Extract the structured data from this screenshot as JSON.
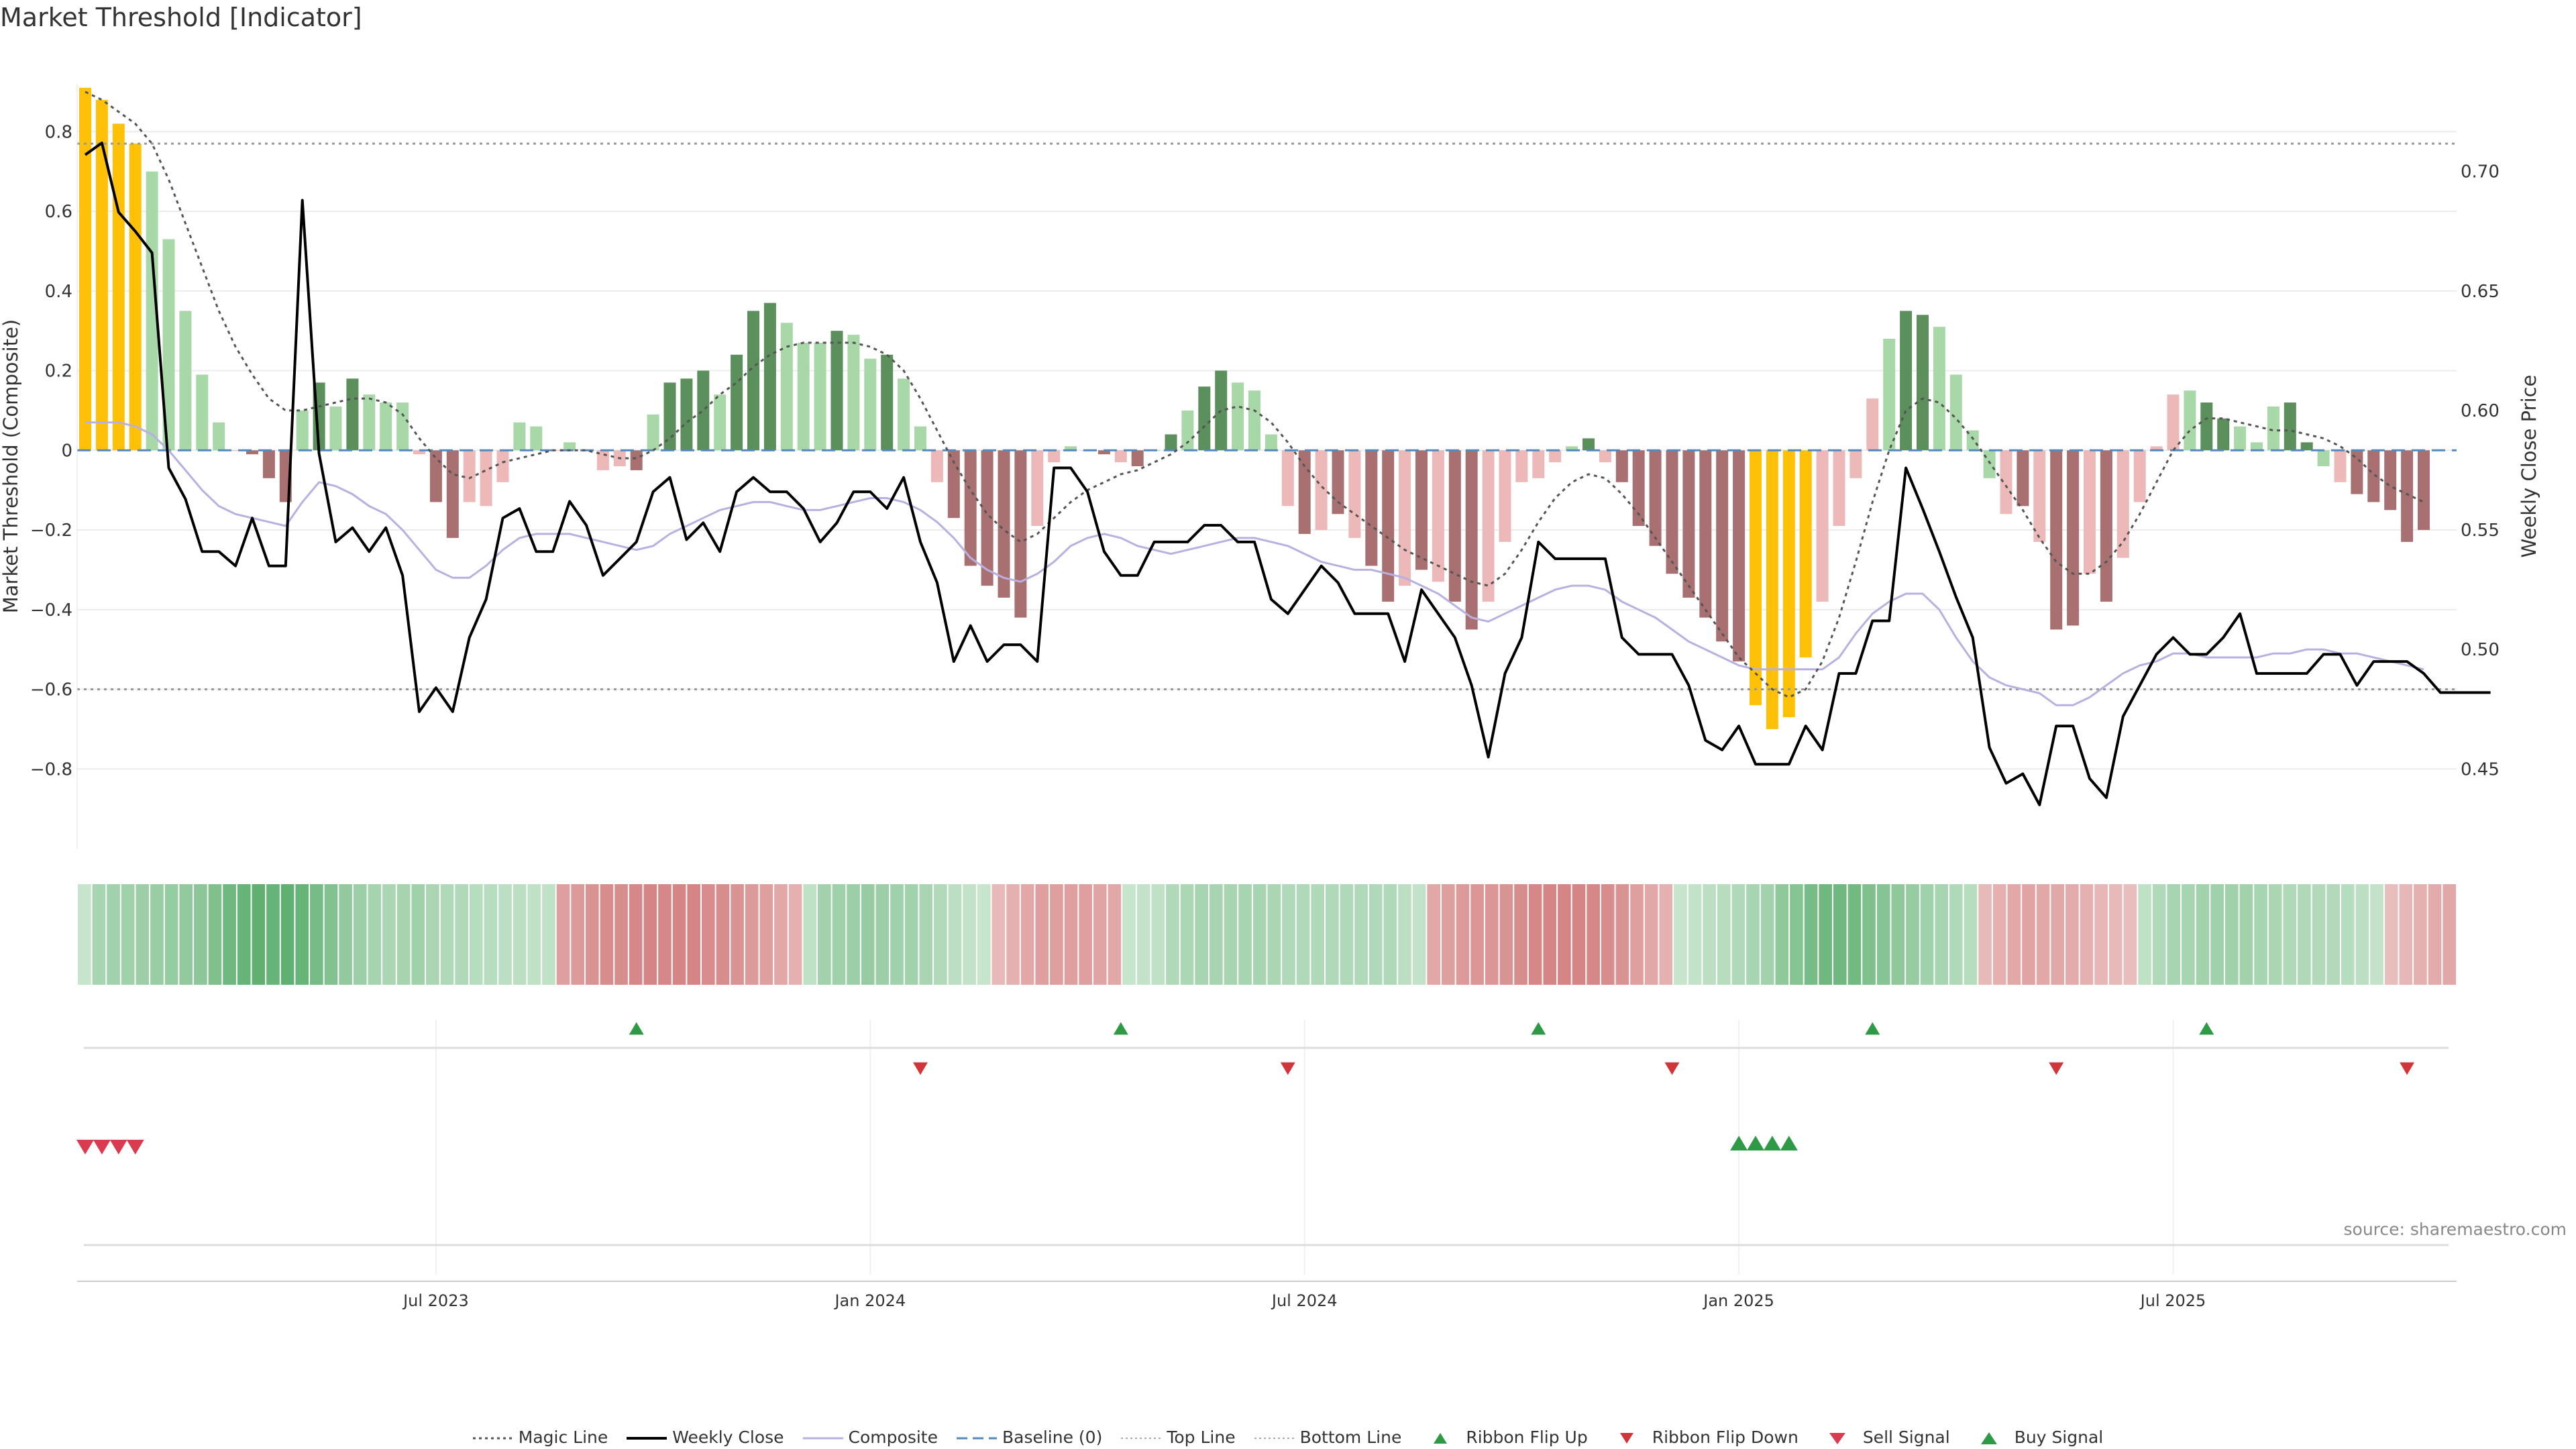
{
  "title": "Market Threshold [Indicator]",
  "source": "source: sharemaestro.com",
  "colors": {
    "yellow": "#FFC107",
    "strong_green": "#5B8F5B",
    "light_green": "#A8D8A8",
    "strong_red": "#A87070",
    "light_red": "#EDB8B8",
    "composite": "#B8B0E0",
    "magic": "#555555",
    "weekly": "#000000",
    "baseline": "#5588BB",
    "flip_up": "#2E9A45",
    "flip_down": "#D0353A",
    "sell": "#D93B4F",
    "buy": "#2E9A45"
  },
  "legend": [
    {
      "label": "Magic Line",
      "icon": "dotted-line-icon"
    },
    {
      "label": "Weekly Close",
      "icon": "solid-line-icon"
    },
    {
      "label": "Composite",
      "icon": "purple-line-icon"
    },
    {
      "label": "Baseline (0)",
      "icon": "dashed-line-icon"
    },
    {
      "label": "Top Line",
      "icon": "dotted-line-icon"
    },
    {
      "label": "Bottom Line",
      "icon": "dotted-line-icon"
    },
    {
      "label": "Ribbon Flip Up",
      "icon": "triangle-up-icon"
    },
    {
      "label": "Ribbon Flip Down",
      "icon": "triangle-down-icon"
    },
    {
      "label": "Sell Signal",
      "icon": "triangle-down-icon"
    },
    {
      "label": "Buy Signal",
      "icon": "triangle-up-icon"
    }
  ],
  "chart_data": {
    "type": "bar",
    "title": "Market Threshold [Indicator]",
    "ylabel": "Market Threshold (Composite)",
    "ylabel_right": "Weekly Close Price",
    "ylim": [
      -1.0,
      0.92
    ],
    "ylim_right": [
      0.4167,
      0.7367
    ],
    "yticks": [
      0.8,
      0.6,
      0.4,
      0.2,
      0,
      -0.2,
      -0.4,
      -0.6,
      -0.8
    ],
    "ytick_labels": [
      "0.8",
      "0.6",
      "0.4",
      "0.2",
      "0",
      "−0.2",
      "−0.4",
      "−0.6",
      "−0.8"
    ],
    "yticks_right": [
      0.7,
      0.65,
      0.6,
      0.55,
      0.5,
      0.45
    ],
    "ytick_labels_right": [
      "0.70",
      "0.65",
      "0.60",
      "0.55",
      "0.50",
      "0.45"
    ],
    "top_line": 0.77,
    "bottom_line": -0.6,
    "baseline": 0,
    "x_tick_weeks": [
      21,
      47,
      73,
      99,
      125
    ],
    "x_tick_labels": [
      "Jul 2023",
      "Jan 2024",
      "Jul 2024",
      "Jan 2025",
      "Jul 2025"
    ],
    "composite_bars": [
      0.91,
      0.88,
      0.82,
      0.77,
      0.7,
      0.53,
      0.35,
      0.19,
      0.07,
      0.0,
      -0.01,
      -0.07,
      -0.13,
      0.1,
      0.17,
      0.11,
      0.18,
      0.14,
      0.12,
      0.12,
      -0.01,
      -0.13,
      -0.22,
      -0.13,
      -0.14,
      -0.08,
      0.07,
      0.06,
      0.0,
      0.02,
      0.0,
      -0.05,
      -0.04,
      -0.05,
      0.09,
      0.17,
      0.18,
      0.2,
      0.14,
      0.24,
      0.35,
      0.37,
      0.32,
      0.27,
      0.27,
      0.3,
      0.29,
      0.23,
      0.24,
      0.18,
      0.06,
      -0.08,
      -0.17,
      -0.29,
      -0.34,
      -0.37,
      -0.42,
      -0.19,
      -0.03,
      0.01,
      0.0,
      -0.01,
      -0.03,
      -0.04,
      0.0,
      0.04,
      0.1,
      0.16,
      0.2,
      0.17,
      0.15,
      0.04,
      -0.14,
      -0.21,
      -0.2,
      -0.16,
      -0.22,
      -0.29,
      -0.38,
      -0.34,
      -0.3,
      -0.33,
      -0.38,
      -0.45,
      -0.38,
      -0.23,
      -0.08,
      -0.07,
      -0.03,
      0.01,
      0.03,
      -0.03,
      -0.08,
      -0.19,
      -0.24,
      -0.31,
      -0.37,
      -0.42,
      -0.48,
      -0.53,
      -0.64,
      -0.7,
      -0.67,
      -0.52,
      -0.38,
      -0.19,
      -0.07,
      0.13,
      0.28,
      0.35,
      0.34,
      0.31,
      0.19,
      0.05,
      -0.07,
      -0.16,
      -0.14,
      -0.23,
      -0.45,
      -0.44,
      -0.31,
      -0.38,
      -0.27,
      -0.13,
      0.01,
      0.14,
      0.15,
      0.12,
      0.08,
      0.06,
      0.02,
      0.11,
      0.12,
      0.02,
      -0.04,
      -0.08,
      -0.11,
      -0.13,
      -0.15,
      -0.23,
      -0.2
    ],
    "bar_styles": [
      "Y",
      "Y",
      "Y",
      "Y",
      "lg",
      "lg",
      "lg",
      "lg",
      "lg",
      "lr",
      "sr",
      "sr",
      "sr",
      "lg",
      "sg",
      "lg",
      "sg",
      "lg",
      "lg",
      "lg",
      "lr",
      "sr",
      "sr",
      "lr",
      "lr",
      "lr",
      "lg",
      "lg",
      "lr",
      "lg",
      "lr",
      "lr",
      "lr",
      "sr",
      "lg",
      "sg",
      "sg",
      "sg",
      "lg",
      "sg",
      "sg",
      "sg",
      "lg",
      "lg",
      "lg",
      "sg",
      "lg",
      "lg",
      "sg",
      "lg",
      "lg",
      "lr",
      "sr",
      "sr",
      "sr",
      "sr",
      "sr",
      "lr",
      "lr",
      "lg",
      "lr",
      "sr",
      "lr",
      "sr",
      "lg",
      "sg",
      "lg",
      "sg",
      "sg",
      "lg",
      "lg",
      "lg",
      "lr",
      "sr",
      "lr",
      "sr",
      "lr",
      "sr",
      "sr",
      "lr",
      "sr",
      "lr",
      "sr",
      "sr",
      "lr",
      "lr",
      "lr",
      "lr",
      "lr",
      "lg",
      "sg",
      "lr",
      "sr",
      "sr",
      "sr",
      "sr",
      "sr",
      "sr",
      "sr",
      "sr",
      "Y",
      "Y",
      "Y",
      "Y",
      "lr",
      "lr",
      "lr",
      "lr",
      "lg",
      "sg",
      "sg",
      "lg",
      "lg",
      "lg",
      "lg",
      "lr",
      "sr",
      "lr",
      "sr",
      "sr",
      "lr",
      "sr",
      "lr",
      "lr",
      "lr",
      "lr",
      "lg",
      "sg",
      "sg",
      "lg",
      "lg",
      "lg",
      "sg",
      "sg",
      "lg",
      "lr",
      "sr",
      "sr",
      "sr",
      "sr",
      "sr",
      "lr"
    ],
    "magic_line": [
      0.9,
      0.88,
      0.85,
      0.82,
      0.77,
      0.68,
      0.57,
      0.46,
      0.35,
      0.26,
      0.19,
      0.13,
      0.1,
      0.1,
      0.11,
      0.12,
      0.13,
      0.13,
      0.12,
      0.09,
      0.03,
      -0.02,
      -0.06,
      -0.07,
      -0.05,
      -0.03,
      -0.02,
      -0.01,
      0.0,
      0.0,
      0.0,
      -0.01,
      -0.02,
      -0.02,
      0.0,
      0.03,
      0.07,
      0.1,
      0.14,
      0.17,
      0.21,
      0.24,
      0.26,
      0.27,
      0.27,
      0.27,
      0.27,
      0.26,
      0.24,
      0.2,
      0.13,
      0.05,
      -0.03,
      -0.1,
      -0.16,
      -0.2,
      -0.23,
      -0.21,
      -0.17,
      -0.13,
      -0.1,
      -0.08,
      -0.06,
      -0.05,
      -0.03,
      -0.01,
      0.02,
      0.06,
      0.1,
      0.11,
      0.1,
      0.07,
      0.02,
      -0.04,
      -0.09,
      -0.13,
      -0.16,
      -0.19,
      -0.22,
      -0.25,
      -0.27,
      -0.29,
      -0.31,
      -0.33,
      -0.34,
      -0.31,
      -0.25,
      -0.18,
      -0.12,
      -0.08,
      -0.06,
      -0.07,
      -0.11,
      -0.16,
      -0.22,
      -0.28,
      -0.34,
      -0.4,
      -0.46,
      -0.52,
      -0.56,
      -0.6,
      -0.62,
      -0.6,
      -0.53,
      -0.42,
      -0.28,
      -0.13,
      0.0,
      0.1,
      0.13,
      0.12,
      0.08,
      0.03,
      -0.03,
      -0.09,
      -0.15,
      -0.22,
      -0.28,
      -0.31,
      -0.31,
      -0.28,
      -0.23,
      -0.16,
      -0.08,
      0.0,
      0.05,
      0.08,
      0.08,
      0.07,
      0.06,
      0.05,
      0.05,
      0.04,
      0.03,
      0.01,
      -0.02,
      -0.06,
      -0.09,
      -0.11,
      -0.13
    ],
    "composite_line": [
      0.07,
      0.07,
      0.07,
      0.06,
      0.04,
      0.0,
      -0.05,
      -0.1,
      -0.14,
      -0.16,
      -0.17,
      -0.18,
      -0.19,
      -0.13,
      -0.08,
      -0.09,
      -0.11,
      -0.14,
      -0.16,
      -0.2,
      -0.25,
      -0.3,
      -0.32,
      -0.32,
      -0.29,
      -0.25,
      -0.22,
      -0.21,
      -0.21,
      -0.21,
      -0.22,
      -0.23,
      -0.24,
      -0.25,
      -0.24,
      -0.21,
      -0.19,
      -0.17,
      -0.15,
      -0.14,
      -0.13,
      -0.13,
      -0.14,
      -0.15,
      -0.15,
      -0.14,
      -0.13,
      -0.12,
      -0.12,
      -0.13,
      -0.15,
      -0.18,
      -0.22,
      -0.27,
      -0.3,
      -0.32,
      -0.33,
      -0.31,
      -0.28,
      -0.24,
      -0.22,
      -0.21,
      -0.22,
      -0.24,
      -0.25,
      -0.26,
      -0.25,
      -0.24,
      -0.23,
      -0.22,
      -0.22,
      -0.23,
      -0.24,
      -0.26,
      -0.28,
      -0.29,
      -0.3,
      -0.3,
      -0.31,
      -0.32,
      -0.34,
      -0.36,
      -0.39,
      -0.42,
      -0.43,
      -0.41,
      -0.39,
      -0.37,
      -0.35,
      -0.34,
      -0.34,
      -0.35,
      -0.38,
      -0.4,
      -0.42,
      -0.45,
      -0.48,
      -0.5,
      -0.52,
      -0.54,
      -0.55,
      -0.55,
      -0.55,
      -0.55,
      -0.55,
      -0.52,
      -0.46,
      -0.41,
      -0.38,
      -0.36,
      -0.36,
      -0.4,
      -0.47,
      -0.53,
      -0.57,
      -0.59,
      -0.6,
      -0.61,
      -0.64,
      -0.64,
      -0.62,
      -0.59,
      -0.56,
      -0.54,
      -0.53,
      -0.51,
      -0.51,
      -0.52,
      -0.52,
      -0.52,
      -0.52,
      -0.51,
      -0.51,
      -0.5,
      -0.5,
      -0.51,
      -0.51,
      -0.52,
      -0.53,
      -0.54,
      -0.55
    ],
    "weekly_close": [
      0.707,
      0.712,
      0.683,
      0.675,
      0.666,
      0.576,
      0.563,
      0.541,
      0.541,
      0.535,
      0.555,
      0.535,
      0.535,
      0.688,
      0.582,
      0.545,
      0.551,
      0.541,
      0.551,
      0.531,
      0.474,
      0.484,
      0.474,
      0.505,
      0.521,
      0.555,
      0.559,
      0.541,
      0.541,
      0.562,
      0.552,
      0.531,
      0.538,
      0.545,
      0.566,
      0.572,
      0.546,
      0.553,
      0.541,
      0.566,
      0.572,
      0.566,
      0.566,
      0.559,
      0.545,
      0.553,
      0.566,
      0.566,
      0.559,
      0.572,
      0.545,
      0.528,
      0.495,
      0.51,
      0.495,
      0.502,
      0.502,
      0.495,
      0.576,
      0.576,
      0.566,
      0.541,
      0.531,
      0.531,
      0.545,
      0.545,
      0.545,
      0.552,
      0.552,
      0.545,
      0.545,
      0.521,
      0.515,
      0.525,
      0.535,
      0.528,
      0.515,
      0.515,
      0.515,
      0.495,
      0.525,
      0.515,
      0.505,
      0.485,
      0.455,
      0.49,
      0.505,
      0.545,
      0.538,
      0.538,
      0.538,
      0.538,
      0.505,
      0.498,
      0.498,
      0.498,
      0.485,
      0.462,
      0.458,
      0.468,
      0.452,
      0.452,
      0.452,
      0.468,
      0.458,
      0.49,
      0.49,
      0.512,
      0.512,
      0.576,
      0.559,
      0.541,
      0.522,
      0.505,
      0.459,
      0.444,
      0.448,
      0.435,
      0.468,
      0.468,
      0.446,
      0.438,
      0.472,
      0.485,
      0.498,
      0.505,
      0.498,
      0.498,
      0.505,
      0.515,
      0.49,
      0.49,
      0.49,
      0.49,
      0.498,
      0.498,
      0.485,
      0.495,
      0.495,
      0.495,
      0.49,
      0.482,
      0.482,
      0.482,
      0.482
    ],
    "ribbon_values": [
      0.15,
      0.35,
      0.38,
      0.4,
      0.42,
      0.44,
      0.46,
      0.48,
      0.52,
      0.6,
      0.7,
      0.75,
      0.8,
      0.75,
      0.8,
      0.75,
      0.65,
      0.58,
      0.48,
      0.42,
      0.36,
      0.33,
      0.36,
      0.4,
      0.33,
      0.3,
      0.3,
      0.25,
      0.25,
      0.22,
      0.22,
      0.2,
      0.2,
      -0.35,
      -0.38,
      -0.42,
      -0.45,
      -0.45,
      -0.48,
      -0.5,
      -0.48,
      -0.5,
      -0.5,
      -0.46,
      -0.45,
      -0.42,
      -0.38,
      -0.35,
      -0.3,
      -0.25,
      0.2,
      0.38,
      0.4,
      0.42,
      0.45,
      0.42,
      0.4,
      0.38,
      0.34,
      0.28,
      0.22,
      0.18,
      0.15,
      -0.2,
      -0.25,
      -0.3,
      -0.35,
      -0.35,
      -0.35,
      -0.35,
      -0.32,
      -0.3,
      0.15,
      0.18,
      0.2,
      0.3,
      0.32,
      0.35,
      0.35,
      0.35,
      0.35,
      0.35,
      0.33,
      0.3,
      0.3,
      0.3,
      0.3,
      0.3,
      0.3,
      0.3,
      0.3,
      0.22,
      0.18,
      -0.3,
      -0.35,
      -0.38,
      -0.4,
      -0.4,
      -0.42,
      -0.45,
      -0.48,
      -0.5,
      -0.5,
      -0.5,
      -0.48,
      -0.45,
      -0.42,
      -0.35,
      -0.3,
      -0.25,
      0.15,
      0.18,
      0.22,
      0.25,
      0.3,
      0.35,
      0.38,
      0.5,
      0.55,
      0.65,
      0.7,
      0.7,
      0.68,
      0.6,
      0.55,
      0.5,
      0.45,
      0.4,
      0.35,
      0.3,
      0.25,
      -0.2,
      -0.25,
      -0.3,
      -0.32,
      -0.3,
      -0.3,
      -0.28,
      -0.25,
      -0.22,
      -0.2,
      -0.18,
      0.2,
      0.3,
      0.35,
      0.35,
      0.38,
      0.4,
      0.4,
      0.38,
      0.35,
      0.33,
      0.3,
      0.3,
      0.28,
      0.28,
      0.25,
      0.22,
      0.18,
      -0.18,
      -0.22,
      -0.25,
      -0.28,
      -0.3
    ],
    "ribbon_flip_up_weeks": [
      33,
      62,
      87,
      107,
      127
    ],
    "ribbon_flip_down_weeks": [
      50,
      72,
      95,
      118,
      139
    ],
    "sell_signal_weeks": [
      0,
      1,
      2,
      3
    ],
    "buy_signal_weeks": [
      99,
      100,
      101,
      102
    ]
  }
}
